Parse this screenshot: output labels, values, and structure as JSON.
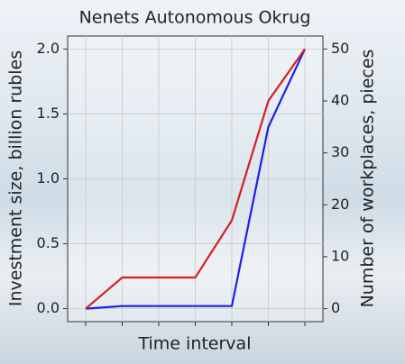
{
  "chart_data": {
    "type": "line",
    "title": "Nenets Autonomous Okrug",
    "x_label": "Time interval",
    "y_label": "Investment size, billion rubles",
    "y2_label": "Number of workplaces, pieces",
    "categories": [
      null,
      null,
      null,
      null,
      null,
      null,
      null
    ],
    "series": [
      {
        "color": "#1f1fe6",
        "values": [
          0,
          0.02,
          0.02,
          0.02,
          0.02,
          1.4,
          2.0
        ]
      },
      {
        "color": "#d81f26",
        "axis": "y2",
        "values": [
          0,
          6,
          6,
          6,
          17,
          40,
          50
        ]
      }
    ],
    "ylim": [
      -0.1,
      2.1
    ],
    "yticks": [
      {
        "value": 0,
        "label": "0.0"
      },
      {
        "value": 0.5,
        "label": "0.5"
      },
      {
        "value": 1,
        "label": "1.0"
      },
      {
        "value": 1.5,
        "label": "1.5"
      },
      {
        "value": 2,
        "label": "2.0"
      }
    ],
    "y2lim": [
      -2.5,
      52.5
    ],
    "y2ticks": [
      0,
      10,
      20,
      30,
      40,
      50
    ],
    "grid": true
  }
}
